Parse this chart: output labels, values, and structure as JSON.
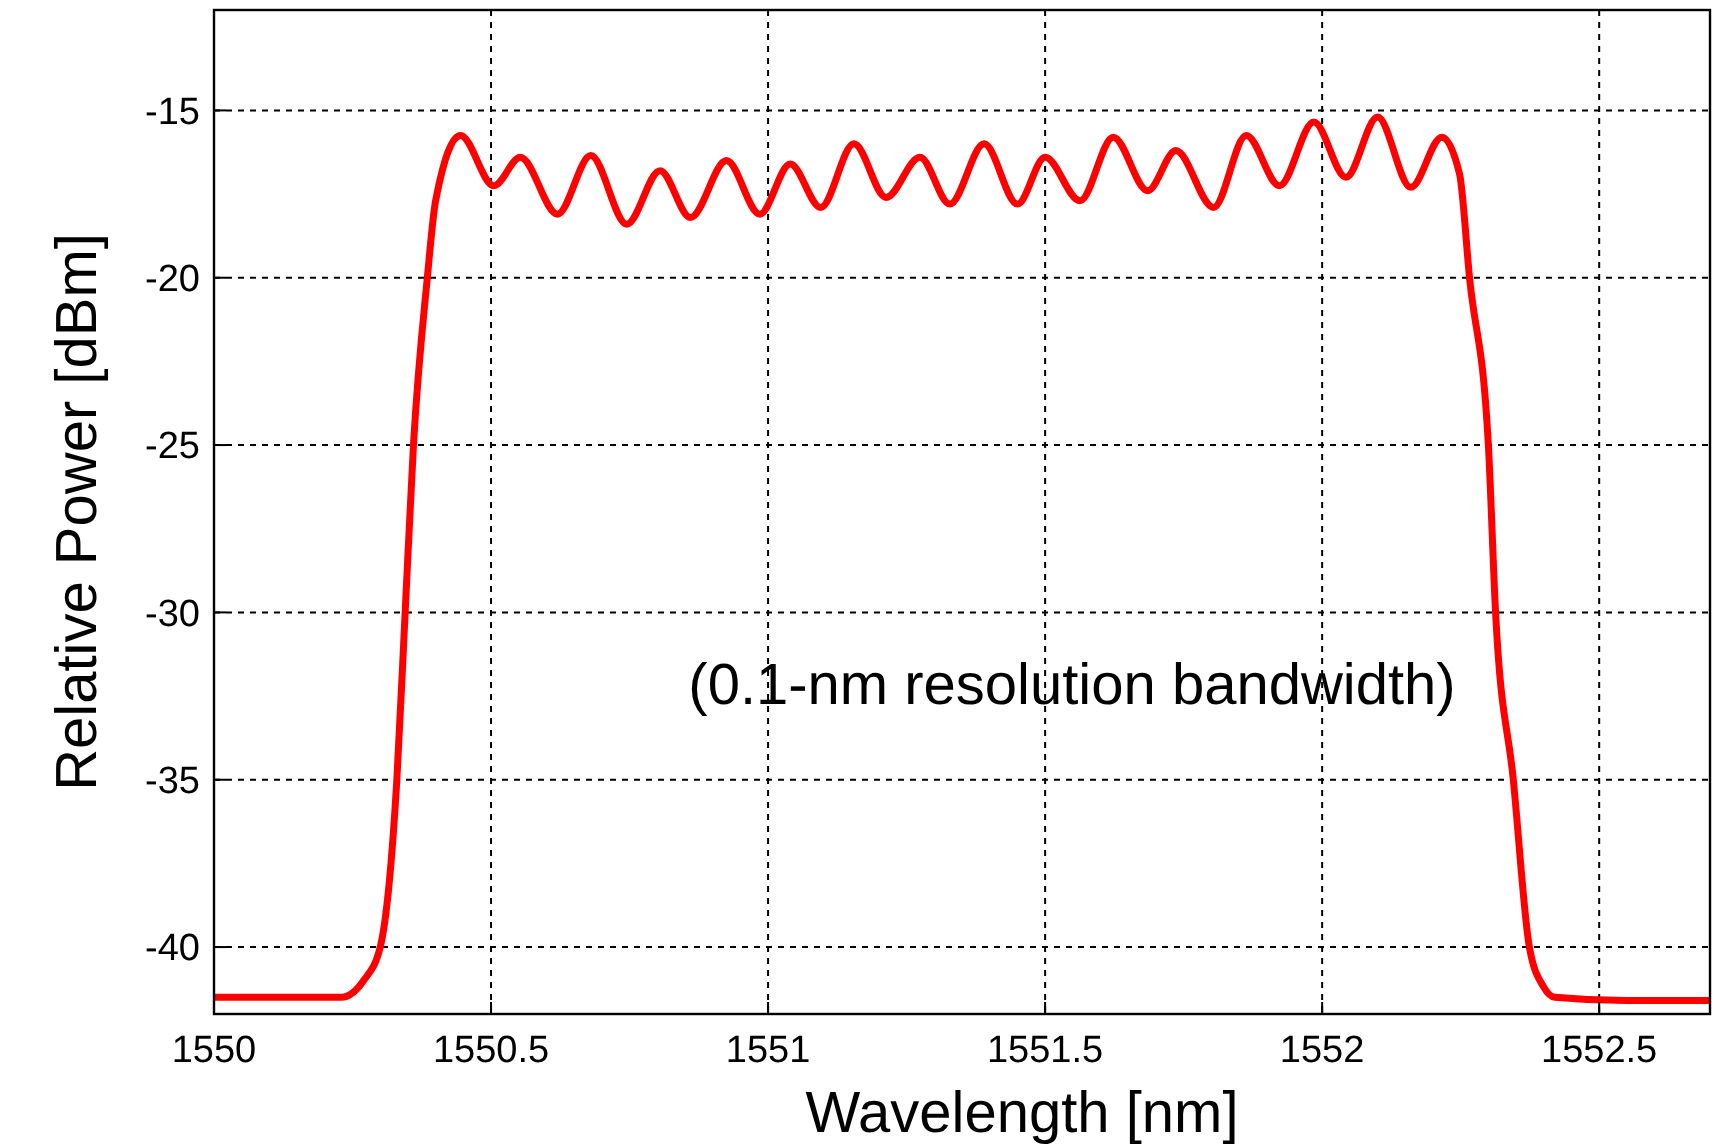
{
  "chart_data": {
    "type": "line",
    "xlabel": "Wavelength [nm]",
    "ylabel": "Relative Power [dBm]",
    "annotations": [
      "(0.1-nm resolution bandwidth)"
    ],
    "xlim": [
      1550,
      1552.7
    ],
    "xticks": [
      1550,
      1550.5,
      1551,
      1551.5,
      1552,
      1552.5
    ],
    "ylim": [
      -42,
      -12
    ],
    "yticks": [
      -40,
      -35,
      -30,
      -25,
      -20,
      -15
    ],
    "grid": true,
    "line_style": "solid",
    "marker": "none",
    "series": [
      {
        "color": "#ff0000",
        "x": [
          1550,
          1550.1,
          1550.23,
          1550.27,
          1550.3,
          1550.33,
          1550.345,
          1550.36,
          1550.385,
          1550.4,
          1550.445,
          1550.505,
          1550.553,
          1550.62,
          1550.68,
          1550.745,
          1550.805,
          1550.86,
          1550.925,
          1550.985,
          1551.04,
          1551.095,
          1551.155,
          1551.213,
          1551.274,
          1551.328,
          1551.39,
          1551.45,
          1551.5,
          1551.563,
          1551.623,
          1551.685,
          1551.736,
          1551.804,
          1551.863,
          1551.923,
          1551.985,
          1552.043,
          1552.1,
          1552.16,
          1552.216,
          1552.248,
          1552.266,
          1552.3,
          1552.313,
          1552.345,
          1552.374,
          1552.4,
          1552.42,
          1552.55,
          1552.7
        ],
        "values": [
          -41.5,
          -41.5,
          -41.5,
          -41,
          -40,
          -35,
          -30,
          -25,
          -20,
          -17.7,
          -15.75,
          -17.25,
          -16.4,
          -18.1,
          -16.35,
          -18.4,
          -16.8,
          -18.2,
          -16.5,
          -18.1,
          -16.6,
          -17.9,
          -16,
          -17.6,
          -16.4,
          -17.8,
          -16,
          -17.8,
          -16.4,
          -17.7,
          -15.8,
          -17.4,
          -16.2,
          -17.9,
          -15.75,
          -17.25,
          -15.35,
          -17,
          -15.2,
          -17.3,
          -15.8,
          -16.9,
          -20,
          -25,
          -30,
          -35,
          -40,
          -41.2,
          -41.5,
          -41.6,
          -41.6
        ]
      }
    ]
  }
}
